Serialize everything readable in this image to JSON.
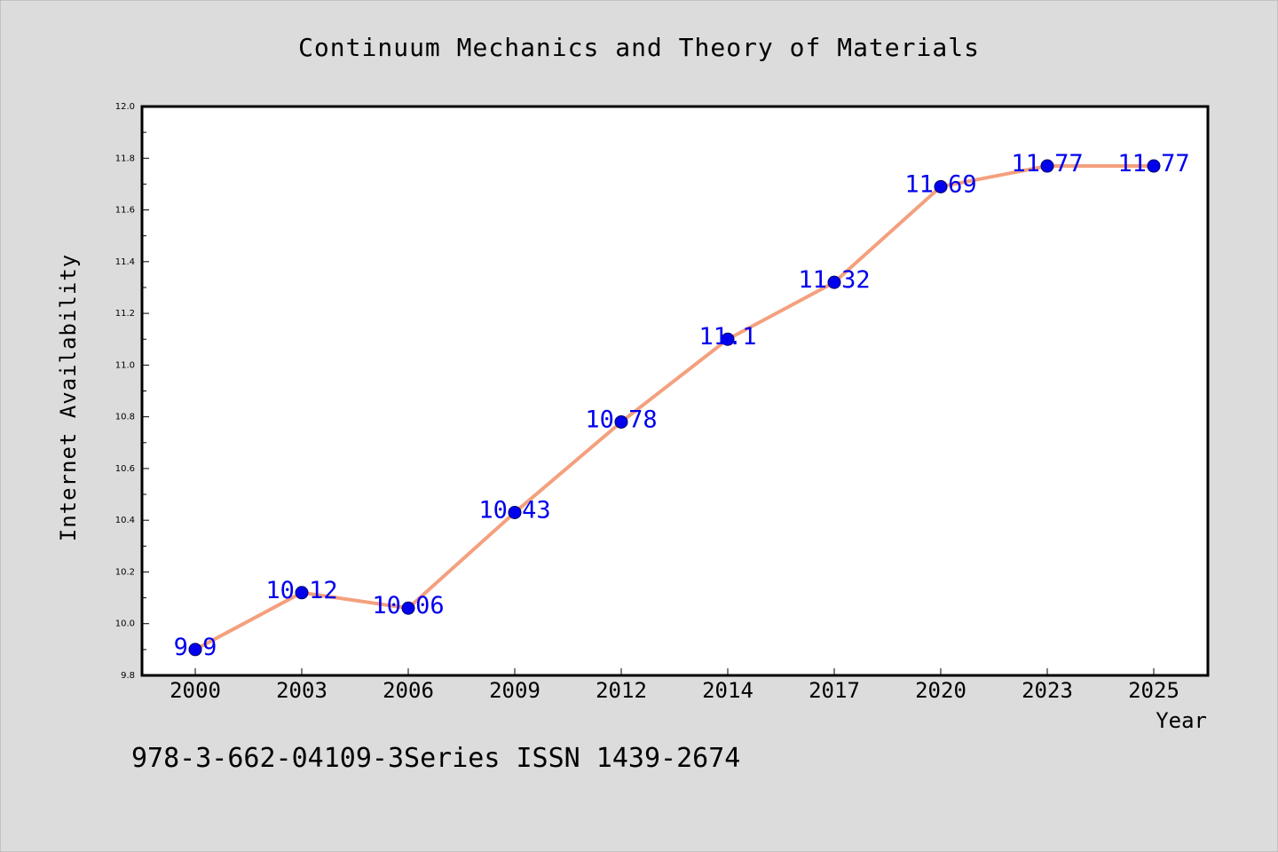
{
  "chart_data": {
    "type": "line",
    "title": "Continuum Mechanics and Theory of Materials",
    "xlabel": "Year",
    "ylabel": "Internet Availability",
    "categories": [
      "2000",
      "2003",
      "2006",
      "2009",
      "2012",
      "2014",
      "2017",
      "2020",
      "2023",
      "2025"
    ],
    "series": [
      {
        "values": [
          9.9,
          10.12,
          10.06,
          10.43,
          10.78,
          11.1,
          11.32,
          11.69,
          11.77,
          11.77
        ],
        "labels": [
          "9.9",
          "10.12",
          "10.06",
          "10.43",
          "10.78",
          "11.1",
          "11.32",
          "11.69",
          "11.77",
          "11.77"
        ]
      }
    ],
    "ylim": [
      9.8,
      12.0
    ],
    "yticks": [
      "9.8",
      "10.0",
      "10.2",
      "10.4",
      "10.6",
      "10.8",
      "11.0",
      "11.2",
      "11.4",
      "11.6",
      "11.8",
      "12.0"
    ],
    "grid": false,
    "line_color": "#f4a07e",
    "marker_color": "#0000ee",
    "label_color": "#0000ee",
    "background": "#dcdcdc",
    "plot_background": "#ffffff"
  },
  "footer_note": "978-3-662-04109-3Series ISSN 1439-2674"
}
